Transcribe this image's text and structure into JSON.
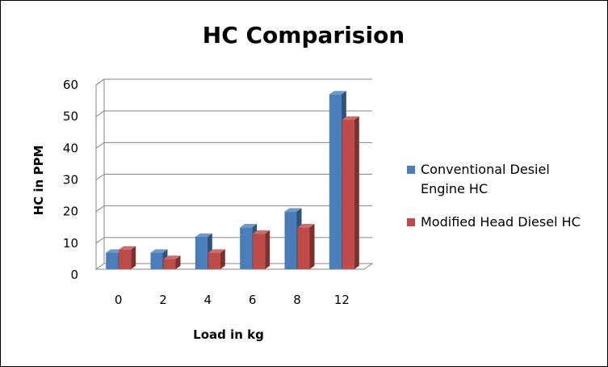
{
  "chart_data": {
    "type": "bar",
    "title": "HC Comparision",
    "xlabel": "Load in kg",
    "ylabel": "HC in PPM",
    "categories": [
      "0",
      "2",
      "4",
      "6",
      "8",
      "12"
    ],
    "series": [
      {
        "name": "Conventional Desiel Engine HC",
        "name_lines": [
          "Conventional Desiel",
          "Engine HC"
        ],
        "color": "#4A7EBB",
        "values": [
          7,
          7,
          12,
          15,
          20,
          57
        ]
      },
      {
        "name": "Modified Head Diesel HC",
        "name_lines": [
          "Modified Head Diesel HC"
        ],
        "color": "#BE4B48",
        "values": [
          8,
          5,
          7,
          13,
          15,
          49
        ]
      }
    ],
    "ylim": [
      0,
      60
    ],
    "yticks": [
      0,
      10,
      20,
      30,
      40,
      50,
      60
    ],
    "grid": true,
    "legend_position": "right",
    "style": "3d-clustered-column"
  }
}
